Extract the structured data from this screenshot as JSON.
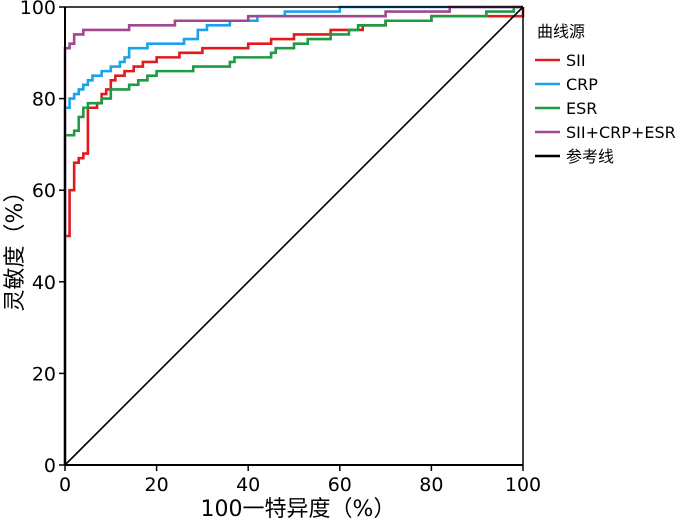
{
  "chart_data": {
    "type": "line",
    "title": "",
    "xlabel": "100一特异度（%）",
    "ylabel": "灵敏度（%）",
    "xlim": [
      0,
      100
    ],
    "ylim": [
      0,
      100
    ],
    "x_ticks": [
      "0",
      "20",
      "40",
      "60",
      "80",
      "100"
    ],
    "y_ticks": [
      "0",
      "20",
      "40",
      "60",
      "80",
      "100"
    ],
    "grid": false,
    "legend": {
      "title": "曲线源",
      "placement": "right",
      "entries": [
        {
          "name": "SII",
          "color": "#e31a1c"
        },
        {
          "name": "CRP",
          "color": "#1ba3e8"
        },
        {
          "name": "ESR",
          "color": "#1e9b45"
        },
        {
          "name": "SII+CRP+ESR",
          "color": "#a0478f"
        },
        {
          "name": "参考线",
          "color": "#000000"
        }
      ]
    },
    "series": [
      {
        "name": "SII",
        "color": "#e31a1c",
        "points": [
          [
            0,
            0
          ],
          [
            0,
            50
          ],
          [
            1,
            50
          ],
          [
            1,
            60
          ],
          [
            2,
            60
          ],
          [
            2,
            66
          ],
          [
            3,
            66
          ],
          [
            3,
            67
          ],
          [
            4,
            67
          ],
          [
            4,
            68
          ],
          [
            5,
            68
          ],
          [
            5,
            78
          ],
          [
            7,
            78
          ],
          [
            7,
            79
          ],
          [
            8,
            79
          ],
          [
            8,
            81
          ],
          [
            9,
            81
          ],
          [
            9,
            82
          ],
          [
            10,
            82
          ],
          [
            10,
            84
          ],
          [
            11,
            84
          ],
          [
            11,
            85
          ],
          [
            13,
            85
          ],
          [
            13,
            86
          ],
          [
            15,
            86
          ],
          [
            15,
            87
          ],
          [
            17,
            87
          ],
          [
            17,
            88
          ],
          [
            20,
            88
          ],
          [
            20,
            89
          ],
          [
            25,
            89
          ],
          [
            25,
            90
          ],
          [
            30,
            90
          ],
          [
            30,
            91
          ],
          [
            40,
            91
          ],
          [
            40,
            92
          ],
          [
            45,
            92
          ],
          [
            45,
            93
          ],
          [
            50,
            93
          ],
          [
            50,
            94
          ],
          [
            58,
            94
          ],
          [
            58,
            95
          ],
          [
            65,
            95
          ],
          [
            65,
            96
          ],
          [
            70,
            96
          ],
          [
            70,
            97
          ],
          [
            80,
            97
          ],
          [
            80,
            98
          ],
          [
            100,
            98
          ],
          [
            100,
            100
          ]
        ]
      },
      {
        "name": "CRP",
        "color": "#1ba3e8",
        "points": [
          [
            0,
            0
          ],
          [
            0,
            78
          ],
          [
            1,
            78
          ],
          [
            1,
            80
          ],
          [
            2,
            80
          ],
          [
            2,
            81
          ],
          [
            3,
            81
          ],
          [
            3,
            82
          ],
          [
            4,
            82
          ],
          [
            4,
            83
          ],
          [
            5,
            83
          ],
          [
            5,
            84
          ],
          [
            6,
            84
          ],
          [
            6,
            85
          ],
          [
            8,
            85
          ],
          [
            8,
            86
          ],
          [
            10,
            86
          ],
          [
            10,
            87
          ],
          [
            12,
            87
          ],
          [
            12,
            88
          ],
          [
            13,
            88
          ],
          [
            13,
            89
          ],
          [
            14,
            89
          ],
          [
            14,
            91
          ],
          [
            18,
            91
          ],
          [
            18,
            92
          ],
          [
            26,
            92
          ],
          [
            26,
            93
          ],
          [
            29,
            93
          ],
          [
            29,
            95
          ],
          [
            31,
            95
          ],
          [
            31,
            96
          ],
          [
            36,
            96
          ],
          [
            36,
            97
          ],
          [
            42,
            97
          ],
          [
            42,
            98
          ],
          [
            48,
            98
          ],
          [
            48,
            99
          ],
          [
            60,
            99
          ],
          [
            60,
            100
          ],
          [
            100,
            100
          ]
        ]
      },
      {
        "name": "ESR",
        "color": "#1e9b45",
        "points": [
          [
            0,
            0
          ],
          [
            0,
            72
          ],
          [
            2,
            72
          ],
          [
            2,
            73
          ],
          [
            3,
            73
          ],
          [
            3,
            76
          ],
          [
            4,
            76
          ],
          [
            4,
            78
          ],
          [
            5,
            78
          ],
          [
            5,
            79
          ],
          [
            8,
            79
          ],
          [
            8,
            80
          ],
          [
            10,
            80
          ],
          [
            10,
            82
          ],
          [
            14,
            82
          ],
          [
            14,
            83
          ],
          [
            16,
            83
          ],
          [
            16,
            84
          ],
          [
            18,
            84
          ],
          [
            18,
            85
          ],
          [
            20,
            85
          ],
          [
            20,
            86
          ],
          [
            28,
            86
          ],
          [
            28,
            87
          ],
          [
            36,
            87
          ],
          [
            36,
            88
          ],
          [
            37,
            88
          ],
          [
            37,
            89
          ],
          [
            45,
            89
          ],
          [
            45,
            90
          ],
          [
            46,
            90
          ],
          [
            46,
            91
          ],
          [
            50,
            91
          ],
          [
            50,
            92
          ],
          [
            53,
            92
          ],
          [
            53,
            93
          ],
          [
            58,
            93
          ],
          [
            58,
            94
          ],
          [
            62,
            94
          ],
          [
            62,
            95
          ],
          [
            64,
            95
          ],
          [
            64,
            96
          ],
          [
            70,
            96
          ],
          [
            70,
            97
          ],
          [
            80,
            97
          ],
          [
            80,
            98
          ],
          [
            92,
            98
          ],
          [
            92,
            99
          ],
          [
            98,
            99
          ],
          [
            98,
            100
          ],
          [
            100,
            100
          ]
        ]
      },
      {
        "name": "SII+CRP+ESR",
        "color": "#a0478f",
        "points": [
          [
            0,
            0
          ],
          [
            0,
            91
          ],
          [
            1,
            91
          ],
          [
            1,
            92
          ],
          [
            2,
            92
          ],
          [
            2,
            94
          ],
          [
            4,
            94
          ],
          [
            4,
            95
          ],
          [
            14,
            95
          ],
          [
            14,
            96
          ],
          [
            24,
            96
          ],
          [
            24,
            97
          ],
          [
            40,
            97
          ],
          [
            40,
            98
          ],
          [
            70,
            98
          ],
          [
            70,
            99
          ],
          [
            84,
            99
          ],
          [
            84,
            100
          ],
          [
            100,
            100
          ]
        ]
      },
      {
        "name": "参考线",
        "color": "#000000",
        "points": [
          [
            0,
            0
          ],
          [
            100,
            100
          ]
        ]
      }
    ]
  }
}
